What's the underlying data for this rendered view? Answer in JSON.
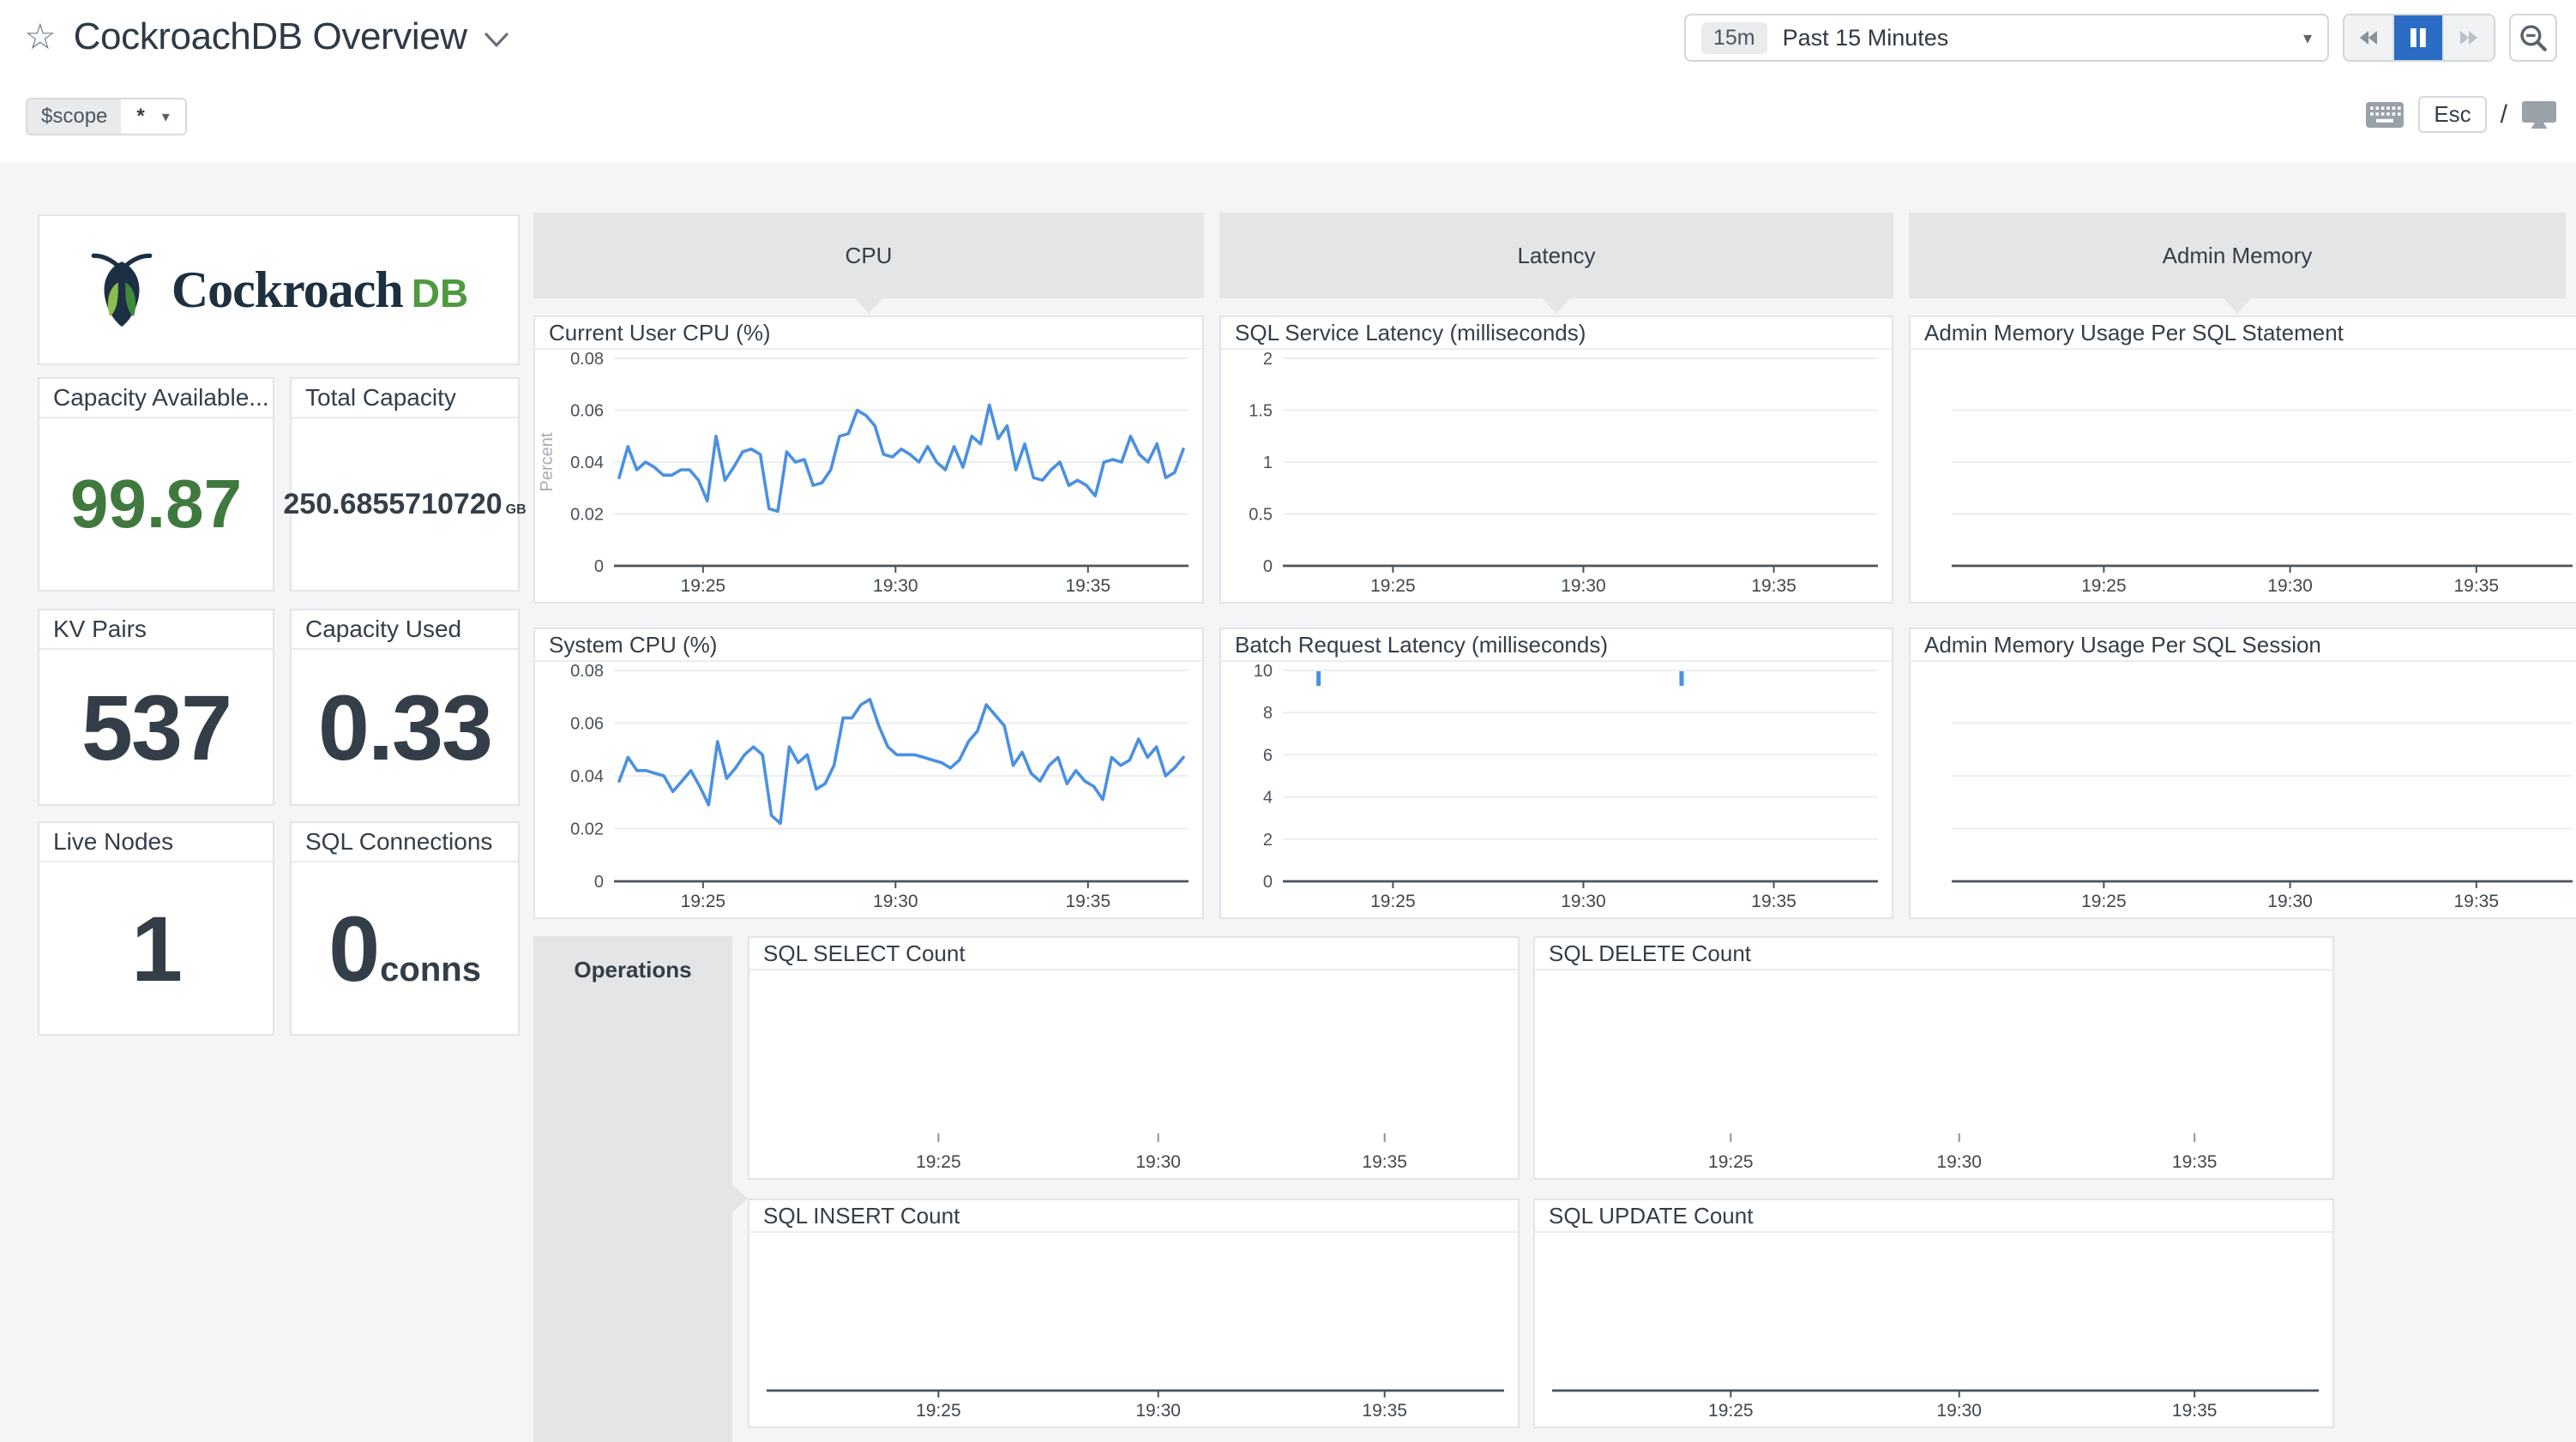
{
  "header": {
    "title": "CockroachDB Overview"
  },
  "icons": {
    "star": "☆",
    "caret_down": "▾"
  },
  "toolbar": {
    "range_badge": "15m",
    "range_label": "Past 15 Minutes",
    "esc_label": "Esc",
    "slash": "/"
  },
  "template_vars": {
    "name": "$scope",
    "value": "*"
  },
  "branding": {
    "wordmark": "Cockroach",
    "wordmark_suffix": "DB"
  },
  "stats": [
    {
      "title": "Capacity Available...",
      "value": "99.87",
      "accent": "#40793e"
    },
    {
      "title": "Total Capacity",
      "value": "250.6855710720",
      "unit": "GB"
    },
    {
      "title": "KV Pairs",
      "value": "537"
    },
    {
      "title": "Capacity Used",
      "value": "0.33"
    },
    {
      "title": "Live Nodes",
      "value": "1"
    },
    {
      "title": "SQL Connections",
      "value": "0",
      "unit": "conns"
    }
  ],
  "groups": {
    "cpu": "CPU",
    "latency": "Latency",
    "admin_memory": "Admin Memory",
    "operations": "Operations"
  },
  "chart_data": [
    {
      "id": "current_user_cpu",
      "type": "line",
      "title": "Current User CPU (%)",
      "ylabel": "Percent",
      "ylim": [
        0,
        0.08
      ],
      "yticks": [
        0,
        0.02,
        0.04,
        0.06,
        0.08
      ],
      "xticks": [
        "19:25",
        "19:30",
        "19:35"
      ],
      "grid": true,
      "line_color": "#4a90e2",
      "values": [
        0.034,
        0.046,
        0.037,
        0.04,
        0.038,
        0.035,
        0.035,
        0.037,
        0.037,
        0.033,
        0.025,
        0.05,
        0.033,
        0.038,
        0.044,
        0.045,
        0.043,
        0.022,
        0.021,
        0.044,
        0.04,
        0.041,
        0.031,
        0.032,
        0.037,
        0.05,
        0.051,
        0.06,
        0.058,
        0.054,
        0.043,
        0.042,
        0.045,
        0.043,
        0.04,
        0.046,
        0.04,
        0.037,
        0.046,
        0.038,
        0.05,
        0.047,
        0.062,
        0.049,
        0.054,
        0.037,
        0.047,
        0.034,
        0.033,
        0.037,
        0.04,
        0.031,
        0.033,
        0.031,
        0.027,
        0.04,
        0.041,
        0.04,
        0.05,
        0.043,
        0.04,
        0.047,
        0.034,
        0.036,
        0.045
      ]
    },
    {
      "id": "system_cpu",
      "type": "line",
      "title": "System CPU (%)",
      "ylim": [
        0,
        0.08
      ],
      "yticks": [
        0,
        0.02,
        0.04,
        0.06,
        0.08
      ],
      "xticks": [
        "19:25",
        "19:30",
        "19:35"
      ],
      "grid": true,
      "line_color": "#4a90e2",
      "values": [
        0.038,
        0.047,
        0.042,
        0.042,
        0.041,
        0.04,
        0.034,
        0.038,
        0.042,
        0.036,
        0.029,
        0.053,
        0.039,
        0.043,
        0.048,
        0.051,
        0.048,
        0.025,
        0.022,
        0.051,
        0.045,
        0.048,
        0.035,
        0.037,
        0.044,
        0.062,
        0.062,
        0.067,
        0.069,
        0.059,
        0.051,
        0.048,
        0.048,
        0.048,
        0.047,
        0.046,
        0.045,
        0.043,
        0.046,
        0.053,
        0.057,
        0.067,
        0.063,
        0.059,
        0.044,
        0.049,
        0.041,
        0.038,
        0.044,
        0.047,
        0.037,
        0.042,
        0.038,
        0.036,
        0.031,
        0.047,
        0.044,
        0.046,
        0.054,
        0.047,
        0.051,
        0.04,
        0.043,
        0.047
      ]
    },
    {
      "id": "sql_service_latency",
      "type": "line",
      "title": "SQL Service Latency (milliseconds)",
      "ylim": [
        0,
        2
      ],
      "yticks": [
        0,
        0.5,
        1,
        1.5,
        2
      ],
      "xticks": [
        "19:25",
        "19:30",
        "19:35"
      ],
      "grid": true,
      "values": []
    },
    {
      "id": "batch_request_latency",
      "type": "line",
      "title": "Batch Request Latency (milliseconds)",
      "ylim": [
        0,
        10
      ],
      "yticks": [
        0,
        2,
        4,
        6,
        8,
        10
      ],
      "xticks": [
        "19:25",
        "19:30",
        "19:35"
      ],
      "grid": true,
      "line_color": "#4a90e2",
      "values": [],
      "spikes": [
        {
          "time": "19:23.5",
          "value": 10
        },
        {
          "time": "19:32.5",
          "value": 10
        }
      ]
    },
    {
      "id": "admin_memory_per_sql_statement",
      "type": "line",
      "title": "Admin Memory Usage Per SQL Statement",
      "yticks": [],
      "xticks": [
        "19:25",
        "19:30",
        "19:35"
      ],
      "grid": true,
      "values": []
    },
    {
      "id": "admin_memory_per_sql_session",
      "type": "line",
      "title": "Admin Memory Usage Per SQL Session",
      "yticks": [],
      "xticks": [
        "19:25",
        "19:30",
        "19:35"
      ],
      "grid": true,
      "values": []
    },
    {
      "id": "sql_select_count",
      "type": "line",
      "title": "SQL SELECT Count",
      "yticks": [],
      "xticks": [
        "19:25",
        "19:30",
        "19:35"
      ],
      "grid": false,
      "values": []
    },
    {
      "id": "sql_delete_count",
      "type": "line",
      "title": "SQL DELETE Count",
      "yticks": [],
      "xticks": [
        "19:25",
        "19:30",
        "19:35"
      ],
      "grid": false,
      "values": []
    },
    {
      "id": "sql_insert_count",
      "type": "line",
      "title": "SQL INSERT Count",
      "yticks": [],
      "xticks": [
        "19:25",
        "19:30",
        "19:35"
      ],
      "grid": false,
      "values": []
    },
    {
      "id": "sql_update_count",
      "type": "line",
      "title": "SQL UPDATE Count",
      "yticks": [],
      "xticks": [
        "19:25",
        "19:30",
        "19:35"
      ],
      "grid": false,
      "values": []
    }
  ]
}
